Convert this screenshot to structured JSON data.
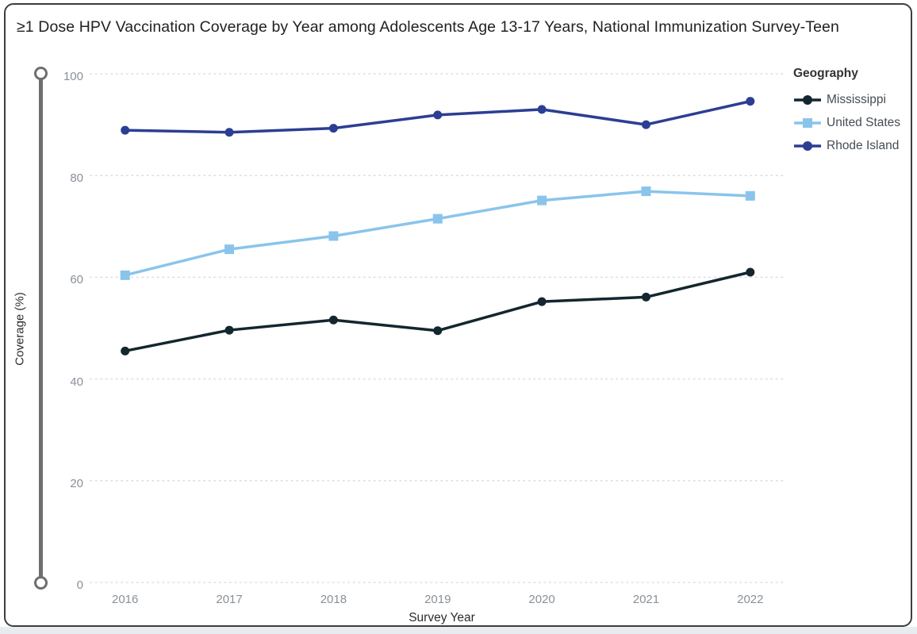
{
  "page": {
    "title": "≥1 Dose HPV Vaccination Coverage by Year among Adolescents Age 13-17 Years, National Immunization Survey-Teen"
  },
  "chart_data": {
    "type": "line",
    "title": "≥1 Dose HPV Vaccination Coverage by Year among Adolescents Age 13-17 Years, National Immunization Survey-Teen",
    "xlabel": "Survey Year",
    "ylabel": "Coverage (%)",
    "x": [
      2016,
      2017,
      2018,
      2019,
      2020,
      2021,
      2022
    ],
    "ylim": [
      0,
      100
    ],
    "yticks": [
      0,
      20,
      40,
      60,
      80,
      100
    ],
    "grid": "horizontal-dotted",
    "legend_title": "Geography",
    "legend_position": "top-right",
    "series": [
      {
        "name": "Mississippi",
        "marker": "circle",
        "color": "#14262e",
        "values": [
          45.5,
          49.6,
          51.6,
          49.5,
          55.2,
          56.1,
          61.0
        ]
      },
      {
        "name": "United States",
        "marker": "square",
        "color": "#8ac4eb",
        "values": [
          60.4,
          65.5,
          68.1,
          71.5,
          75.1,
          76.9,
          76.0
        ]
      },
      {
        "name": "Rhode Island",
        "marker": "circle",
        "color": "#2c3e93",
        "values": [
          88.9,
          88.5,
          89.3,
          91.9,
          93.0,
          90.0,
          94.6
        ]
      }
    ]
  },
  "slider": {
    "orientation": "vertical",
    "handle_top_value": 100,
    "handle_bottom_value": 0
  },
  "colors": {
    "gridline": "#dedede",
    "tick_label": "#8a9099",
    "axis_title": "#2b2b2b",
    "card_border": "#3d3d3d",
    "slider": "#6e6e6e",
    "bottom_strip": "#e8ecf1"
  }
}
